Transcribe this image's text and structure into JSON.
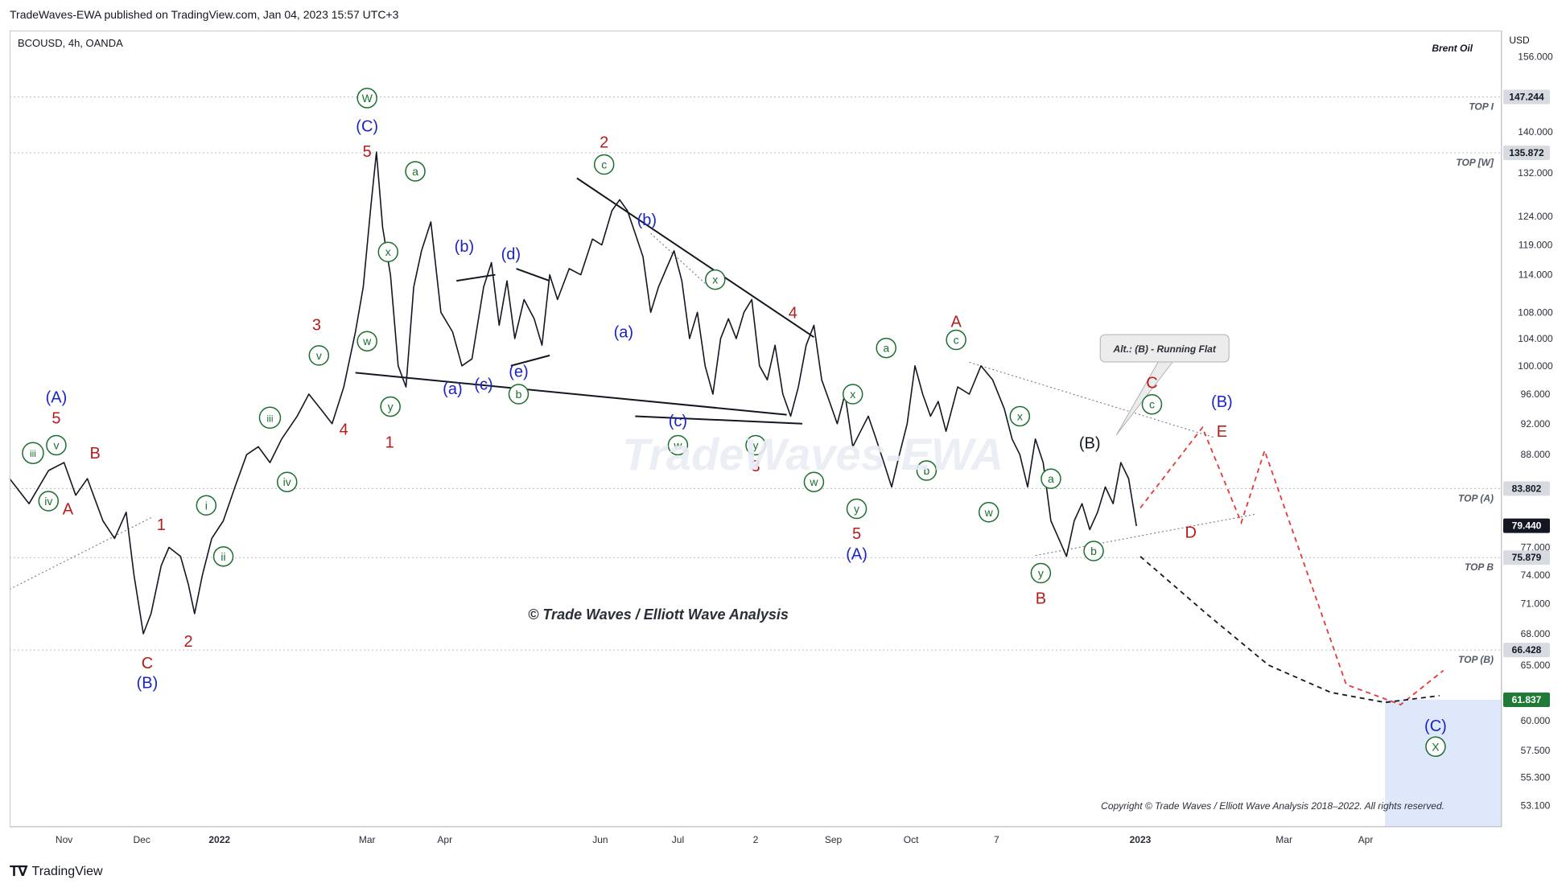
{
  "header": {
    "published": "TradeWaves-EWA published on TradingView.com, Jan 04, 2023 15:57 UTC+3",
    "symbol_line": "BCOUSD, 4h, OANDA",
    "series_name": "Brent Oil",
    "currency": "USD"
  },
  "footer": {
    "brand": "TradingView",
    "watermark": "© Trade Waves / Elliott Wave Analysis",
    "copyright": "Copyright © Trade Waves / Elliott Wave Analysis 2018–2022. All rights reserved.",
    "faint_watermark": "TradeWaves-EWA"
  },
  "colors": {
    "green": "#1b6f2e",
    "red": "#b71c1c",
    "blue": "#1a23c8",
    "black": "#131722",
    "price_line": "#131722",
    "red_dash": "#e53935",
    "target_box": "#dbe6fa"
  },
  "chart_data": {
    "type": "line",
    "title": "BCOUSD, 4h, OANDA",
    "ylabel": "USD",
    "ylim": [
      51.5,
      162.0
    ],
    "yscale": "log",
    "y_ticks": [
      156.0,
      140.0,
      132.0,
      124.0,
      119.0,
      114.0,
      108.0,
      104.0,
      100.0,
      96.0,
      92.0,
      88.0,
      77.0,
      74.0,
      71.0,
      68.0,
      65.0,
      60.0,
      57.5,
      55.3,
      53.1
    ],
    "y_tick_labels": [
      "156.000",
      "140.000",
      "132.000",
      "124.000",
      "119.000",
      "114.000",
      "108.000",
      "104.000",
      "100.000",
      "96.000",
      "92.000",
      "88.000",
      "77.000",
      "74.000",
      "71.000",
      "68.000",
      "65.000",
      "60.000",
      "57.500",
      "55.300",
      "53.100"
    ],
    "x_ticks": [
      {
        "label": "Nov",
        "t": 0.7
      },
      {
        "label": "Dec",
        "t": 1.7
      },
      {
        "label": "2022",
        "t": 2.7
      },
      {
        "label": "Mar",
        "t": 4.6
      },
      {
        "label": "Apr",
        "t": 5.6
      },
      {
        "label": "Jun",
        "t": 7.6
      },
      {
        "label": "Jul",
        "t": 8.6
      },
      {
        "label": "2",
        "t": 9.6
      },
      {
        "label": "Sep",
        "t": 10.6
      },
      {
        "label": "Oct",
        "t": 11.6
      },
      {
        "label": "7",
        "t": 12.7
      },
      {
        "label": "2023",
        "t": 14.55
      },
      {
        "label": "Mar",
        "t": 16.4
      },
      {
        "label": "Apr",
        "t": 17.45
      }
    ],
    "price_path": [
      [
        0,
        85
      ],
      [
        0.25,
        82
      ],
      [
        0.5,
        86
      ],
      [
        0.7,
        87
      ],
      [
        0.85,
        83
      ],
      [
        1.0,
        85
      ],
      [
        1.2,
        80
      ],
      [
        1.35,
        78
      ],
      [
        1.5,
        81
      ],
      [
        1.6,
        74
      ],
      [
        1.72,
        68
      ],
      [
        1.82,
        70
      ],
      [
        1.95,
        75
      ],
      [
        2.05,
        77
      ],
      [
        2.2,
        76
      ],
      [
        2.3,
        73
      ],
      [
        2.38,
        70
      ],
      [
        2.48,
        74
      ],
      [
        2.6,
        78
      ],
      [
        2.75,
        80
      ],
      [
        2.9,
        84
      ],
      [
        3.05,
        88
      ],
      [
        3.2,
        89
      ],
      [
        3.35,
        87
      ],
      [
        3.5,
        90
      ],
      [
        3.7,
        93
      ],
      [
        3.85,
        96
      ],
      [
        4.0,
        94
      ],
      [
        4.15,
        92
      ],
      [
        4.3,
        97
      ],
      [
        4.45,
        105
      ],
      [
        4.55,
        112
      ],
      [
        4.65,
        126
      ],
      [
        4.72,
        136
      ],
      [
        4.8,
        122
      ],
      [
        4.9,
        114
      ],
      [
        5.0,
        100
      ],
      [
        5.1,
        97
      ],
      [
        5.2,
        112
      ],
      [
        5.3,
        118
      ],
      [
        5.42,
        123
      ],
      [
        5.55,
        108
      ],
      [
        5.7,
        105
      ],
      [
        5.82,
        100
      ],
      [
        5.95,
        101
      ],
      [
        6.1,
        112
      ],
      [
        6.2,
        116
      ],
      [
        6.3,
        106
      ],
      [
        6.4,
        113
      ],
      [
        6.5,
        104
      ],
      [
        6.62,
        110
      ],
      [
        6.75,
        107
      ],
      [
        6.85,
        103
      ],
      [
        6.95,
        114
      ],
      [
        7.05,
        110
      ],
      [
        7.2,
        115
      ],
      [
        7.35,
        114
      ],
      [
        7.5,
        120
      ],
      [
        7.62,
        119
      ],
      [
        7.75,
        125
      ],
      [
        7.85,
        127
      ],
      [
        7.95,
        125
      ],
      [
        8.05,
        121
      ],
      [
        8.15,
        117
      ],
      [
        8.25,
        108
      ],
      [
        8.35,
        112
      ],
      [
        8.45,
        115
      ],
      [
        8.55,
        118
      ],
      [
        8.65,
        113
      ],
      [
        8.75,
        104
      ],
      [
        8.85,
        108
      ],
      [
        8.95,
        100
      ],
      [
        9.05,
        96
      ],
      [
        9.15,
        104
      ],
      [
        9.25,
        107
      ],
      [
        9.35,
        104
      ],
      [
        9.45,
        108
      ],
      [
        9.55,
        110
      ],
      [
        9.65,
        100
      ],
      [
        9.75,
        98
      ],
      [
        9.85,
        103
      ],
      [
        9.95,
        96
      ],
      [
        10.05,
        93
      ],
      [
        10.15,
        97
      ],
      [
        10.25,
        103
      ],
      [
        10.35,
        106
      ],
      [
        10.45,
        98
      ],
      [
        10.55,
        95
      ],
      [
        10.65,
        92
      ],
      [
        10.75,
        96
      ],
      [
        10.85,
        89
      ],
      [
        10.95,
        91
      ],
      [
        11.05,
        93
      ],
      [
        11.15,
        90
      ],
      [
        11.25,
        87
      ],
      [
        11.35,
        84
      ],
      [
        11.45,
        88
      ],
      [
        11.55,
        92
      ],
      [
        11.65,
        100
      ],
      [
        11.75,
        96
      ],
      [
        11.85,
        93
      ],
      [
        11.95,
        95
      ],
      [
        12.05,
        91
      ],
      [
        12.2,
        97
      ],
      [
        12.35,
        96
      ],
      [
        12.5,
        100
      ],
      [
        12.65,
        98
      ],
      [
        12.8,
        94
      ],
      [
        12.9,
        90
      ],
      [
        13.0,
        88
      ],
      [
        13.1,
        84
      ],
      [
        13.2,
        90
      ],
      [
        13.3,
        87
      ],
      [
        13.4,
        80
      ],
      [
        13.5,
        78
      ],
      [
        13.6,
        76
      ],
      [
        13.7,
        80
      ],
      [
        13.8,
        82
      ],
      [
        13.9,
        79
      ],
      [
        14.0,
        81
      ],
      [
        14.1,
        84
      ],
      [
        14.2,
        82
      ],
      [
        14.3,
        87
      ],
      [
        14.4,
        85
      ],
      [
        14.5,
        79.4
      ]
    ],
    "projections": {
      "alt_red_path": [
        [
          14.55,
          81.5
        ],
        [
          15.35,
          91.5
        ],
        [
          15.85,
          79.8
        ],
        [
          16.15,
          88.5
        ],
        [
          17.2,
          63.2
        ],
        [
          17.9,
          61.4
        ],
        [
          18.45,
          64.5
        ]
      ],
      "main_black_path": [
        [
          14.55,
          76.0
        ],
        [
          15.4,
          70.0
        ],
        [
          16.2,
          65.0
        ],
        [
          17.0,
          62.5
        ],
        [
          17.7,
          61.6
        ],
        [
          18.4,
          62.2
        ]
      ]
    },
    "trend_lines": [
      {
        "from": [
          4.45,
          99.0
        ],
        "to": [
          10.0,
          93.2
        ],
        "style": "solid"
      },
      {
        "from": [
          7.3,
          131.0
        ],
        "to": [
          10.35,
          104.2
        ],
        "style": "solid"
      },
      {
        "from": [
          8.25,
          121.0
        ],
        "to": [
          9.0,
          112.0
        ],
        "style": "dotted"
      },
      {
        "from": [
          12.35,
          100.5
        ],
        "to": [
          15.5,
          90.2
        ],
        "style": "dotted"
      },
      {
        "from": [
          13.2,
          76.1
        ],
        "to": [
          16.05,
          80.8
        ],
        "style": "dotted"
      },
      {
        "from": [
          0.0,
          72.5
        ],
        "to": [
          1.85,
          80.5
        ],
        "style": "dotted"
      },
      {
        "from": [
          5.75,
          113.0
        ],
        "to": [
          6.25,
          114.0
        ],
        "style": "solid"
      },
      {
        "from": [
          6.52,
          115.0
        ],
        "to": [
          6.95,
          113.0
        ],
        "style": "solid"
      },
      {
        "from": [
          6.45,
          100.0
        ],
        "to": [
          6.95,
          101.5
        ],
        "style": "solid"
      },
      {
        "from": [
          8.05,
          93.0
        ],
        "to": [
          10.2,
          92.0
        ],
        "style": "solid"
      }
    ],
    "horizontal_levels": [
      {
        "price": 147.244,
        "label": "TOP I",
        "value_text": "147.244"
      },
      {
        "price": 135.872,
        "label": "TOP [W]",
        "value_text": "135.872"
      },
      {
        "price": 83.802,
        "label": "TOP (A)",
        "value_text": "83.802"
      },
      {
        "price": 75.879,
        "label": "TOP B",
        "value_text": "75.879"
      },
      {
        "price": 66.428,
        "label": "TOP (B)",
        "value_text": "66.428"
      }
    ],
    "current_price": {
      "price": 79.44,
      "value_text": "79.440"
    },
    "target_price": {
      "price": 61.837,
      "value_text": "61.837"
    },
    "target_zone": {
      "t_start": 17.7,
      "t_end": 19.2,
      "price_top": 61.837,
      "price_bottom": 51.5
    },
    "callout": {
      "text": "Alt.: (B) - Running Flat",
      "anchor": [
        14.2,
        90.5
      ]
    },
    "wave_labels": [
      {
        "text": "W",
        "t": 4.6,
        "p": 147.0,
        "color": "green",
        "circle": true
      },
      {
        "text": "(C)",
        "t": 4.6,
        "p": 141.2,
        "color": "blue"
      },
      {
        "text": "5",
        "t": 4.6,
        "p": 136.2,
        "color": "red"
      },
      {
        "text": "a",
        "t": 5.22,
        "p": 132.3,
        "color": "green",
        "circle": true
      },
      {
        "text": "x",
        "t": 4.87,
        "p": 117.8,
        "color": "green",
        "circle": true
      },
      {
        "text": "w",
        "t": 4.6,
        "p": 103.6,
        "color": "green",
        "circle": true
      },
      {
        "text": "y",
        "t": 4.9,
        "p": 94.3,
        "color": "green",
        "circle": true
      },
      {
        "text": "1",
        "t": 4.89,
        "p": 89.6,
        "color": "red"
      },
      {
        "text": "3",
        "t": 3.95,
        "p": 106.1,
        "color": "red"
      },
      {
        "text": "v",
        "t": 3.98,
        "p": 101.5,
        "color": "green",
        "circle": true
      },
      {
        "text": "iii",
        "t": 3.35,
        "p": 92.8,
        "color": "green",
        "circle": true
      },
      {
        "text": "iv",
        "t": 3.57,
        "p": 84.6,
        "color": "green",
        "circle": true
      },
      {
        "text": "4",
        "t": 4.3,
        "p": 91.3,
        "color": "red"
      },
      {
        "text": "i",
        "t": 2.53,
        "p": 81.8,
        "color": "green",
        "circle": true
      },
      {
        "text": "ii",
        "t": 2.75,
        "p": 76.0,
        "color": "green",
        "circle": true
      },
      {
        "text": "1",
        "t": 1.95,
        "p": 79.6,
        "color": "red"
      },
      {
        "text": "2",
        "t": 2.3,
        "p": 67.3,
        "color": "red"
      },
      {
        "text": "C",
        "t": 1.77,
        "p": 65.2,
        "color": "red"
      },
      {
        "text": "(B)",
        "t": 1.77,
        "p": 63.4,
        "color": "blue"
      },
      {
        "text": "(A)",
        "t": 0.6,
        "p": 95.6,
        "color": "blue"
      },
      {
        "text": "5",
        "t": 0.6,
        "p": 92.8,
        "color": "red"
      },
      {
        "text": "v",
        "t": 0.6,
        "p": 89.2,
        "color": "green",
        "circle": true
      },
      {
        "text": "iii",
        "t": 0.3,
        "p": 88.2,
        "color": "green",
        "circle": true
      },
      {
        "text": "iv",
        "t": 0.5,
        "p": 82.3,
        "color": "green",
        "circle": true
      },
      {
        "text": "B",
        "t": 1.1,
        "p": 88.2,
        "color": "red"
      },
      {
        "text": "A",
        "t": 0.75,
        "p": 81.4,
        "color": "red"
      },
      {
        "text": "(b)",
        "t": 5.85,
        "p": 118.8,
        "color": "blue"
      },
      {
        "text": "(d)",
        "t": 6.45,
        "p": 117.5,
        "color": "blue"
      },
      {
        "text": "(a)",
        "t": 5.7,
        "p": 96.8,
        "color": "blue"
      },
      {
        "text": "(c)",
        "t": 6.1,
        "p": 97.4,
        "color": "blue"
      },
      {
        "text": "(e)",
        "t": 6.55,
        "p": 99.2,
        "color": "blue"
      },
      {
        "text": "b",
        "t": 6.55,
        "p": 96.0,
        "color": "green",
        "circle": true
      },
      {
        "text": "2",
        "t": 7.65,
        "p": 138.0,
        "color": "red"
      },
      {
        "text": "c",
        "t": 7.65,
        "p": 133.6,
        "color": "green",
        "circle": true
      },
      {
        "text": "(b)",
        "t": 8.2,
        "p": 123.4,
        "color": "blue"
      },
      {
        "text": "(a)",
        "t": 7.9,
        "p": 105.0,
        "color": "blue"
      },
      {
        "text": "x",
        "t": 9.08,
        "p": 113.2,
        "color": "green",
        "circle": true
      },
      {
        "text": "4",
        "t": 10.08,
        "p": 108.0,
        "color": "red"
      },
      {
        "text": "(c)",
        "t": 8.6,
        "p": 92.4,
        "color": "blue"
      },
      {
        "text": "w",
        "t": 8.6,
        "p": 89.2,
        "color": "green",
        "circle": true
      },
      {
        "text": "y",
        "t": 9.6,
        "p": 89.2,
        "color": "green",
        "circle": true
      },
      {
        "text": "3",
        "t": 9.6,
        "p": 86.6,
        "color": "red"
      },
      {
        "text": "w",
        "t": 10.35,
        "p": 84.6,
        "color": "green",
        "circle": true
      },
      {
        "text": "x",
        "t": 10.85,
        "p": 96.0,
        "color": "green",
        "circle": true
      },
      {
        "text": "y",
        "t": 10.9,
        "p": 81.4,
        "color": "green",
        "circle": true
      },
      {
        "text": "5",
        "t": 10.9,
        "p": 78.6,
        "color": "red"
      },
      {
        "text": "(A)",
        "t": 10.9,
        "p": 76.3,
        "color": "blue"
      },
      {
        "text": "a",
        "t": 11.28,
        "p": 102.6,
        "color": "green",
        "circle": true
      },
      {
        "text": "b",
        "t": 11.8,
        "p": 86.0,
        "color": "green",
        "circle": true
      },
      {
        "text": "A",
        "t": 12.18,
        "p": 106.6,
        "color": "red"
      },
      {
        "text": "c",
        "t": 12.18,
        "p": 103.8,
        "color": "green",
        "circle": true
      },
      {
        "text": "x",
        "t": 13.0,
        "p": 93.0,
        "color": "green",
        "circle": true
      },
      {
        "text": "w",
        "t": 12.6,
        "p": 81.0,
        "color": "green",
        "circle": true
      },
      {
        "text": "a",
        "t": 13.4,
        "p": 85.0,
        "color": "green",
        "circle": true
      },
      {
        "text": "y",
        "t": 13.27,
        "p": 74.2,
        "color": "green",
        "circle": true
      },
      {
        "text": "B",
        "t": 13.27,
        "p": 71.6,
        "color": "red"
      },
      {
        "text": "(B)",
        "t": 13.9,
        "p": 89.5,
        "color": "black"
      },
      {
        "text": "b",
        "t": 13.95,
        "p": 76.6,
        "color": "green",
        "circle": true
      },
      {
        "text": "C",
        "t": 14.7,
        "p": 97.6,
        "color": "red"
      },
      {
        "text": "c",
        "t": 14.7,
        "p": 94.6,
        "color": "green",
        "circle": true
      },
      {
        "text": "(B)",
        "t": 15.6,
        "p": 95.0,
        "color": "blue"
      },
      {
        "text": "E",
        "t": 15.6,
        "p": 91.0,
        "color": "red"
      },
      {
        "text": "D",
        "t": 15.2,
        "p": 78.7,
        "color": "red"
      },
      {
        "text": "(C)",
        "t": 18.35,
        "p": 59.6,
        "color": "blue"
      },
      {
        "text": "X",
        "t": 18.35,
        "p": 57.8,
        "color": "green",
        "circle": true
      }
    ]
  }
}
